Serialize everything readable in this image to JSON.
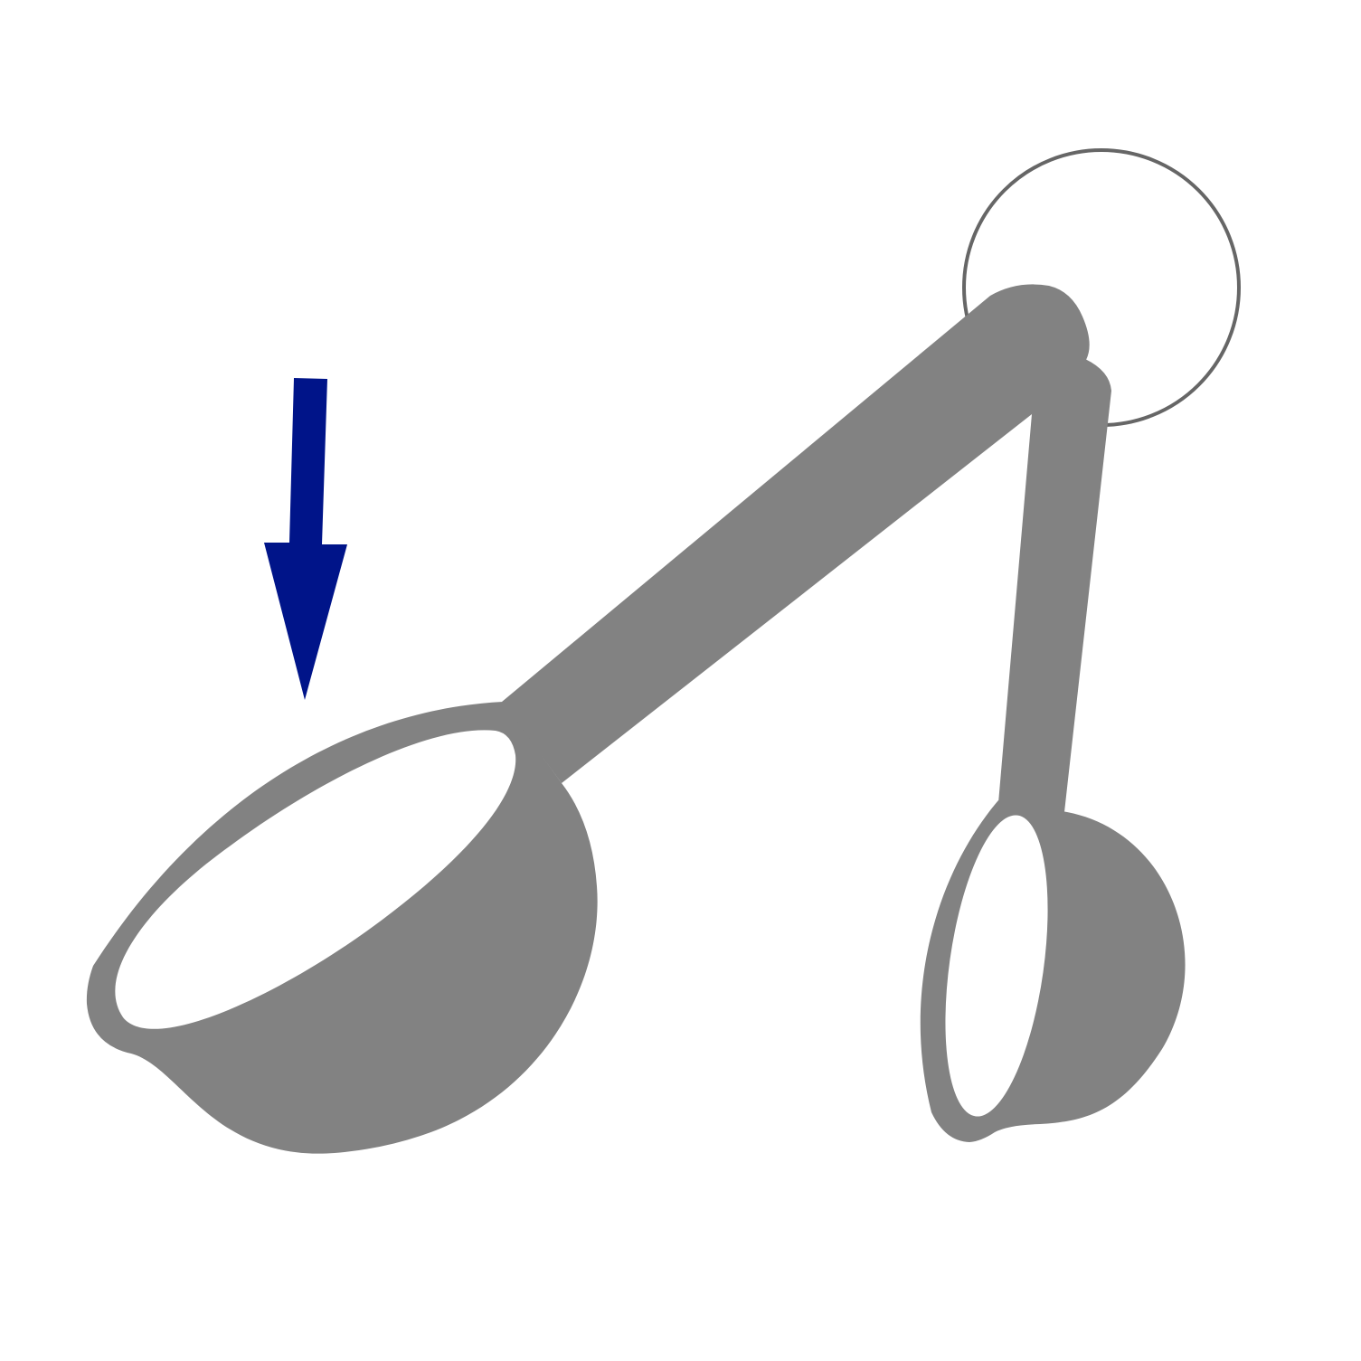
{
  "illustration": {
    "subject": "measuring-spoons-on-ring",
    "colors": {
      "background": "#ffffff",
      "spoon": "#828282",
      "spoon_inner": "#ffffff",
      "ring_stroke": "#666666",
      "arrow": "#001489"
    },
    "indicator": {
      "icon": "down-arrow-icon",
      "points_to": "large-spoon"
    }
  }
}
